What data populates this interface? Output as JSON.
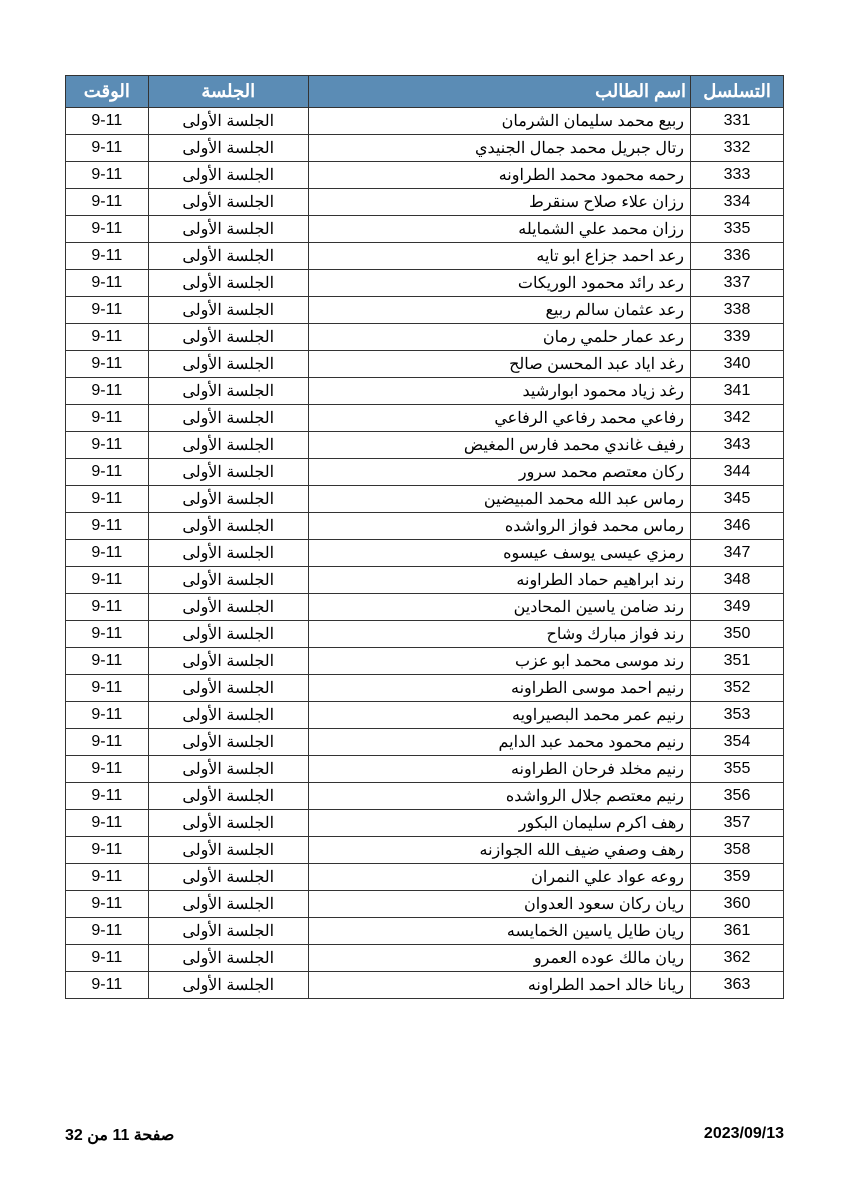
{
  "table": {
    "headers": {
      "seq": "التسلسل",
      "name": "اسم الطالب",
      "session": "الجلسة",
      "time": "الوقت"
    },
    "header_bg": "#5b8cb5",
    "header_fg": "#ffffff",
    "border_color": "#333333",
    "rows": [
      {
        "seq": "331",
        "name": "ربيع محمد سليمان الشرمان",
        "session": "الجلسة الأولى",
        "time": "9-11"
      },
      {
        "seq": "332",
        "name": "رتال جبريل محمد جمال الجنيدي",
        "session": "الجلسة الأولى",
        "time": "9-11"
      },
      {
        "seq": "333",
        "name": "رحمه محمود محمد الطراونه",
        "session": "الجلسة الأولى",
        "time": "9-11"
      },
      {
        "seq": "334",
        "name": "رزان علاء صلاح سنقرط",
        "session": "الجلسة الأولى",
        "time": "9-11"
      },
      {
        "seq": "335",
        "name": "رزان محمد علي الشمايله",
        "session": "الجلسة الأولى",
        "time": "9-11"
      },
      {
        "seq": "336",
        "name": "رعد احمد جزاع ابو تايه",
        "session": "الجلسة الأولى",
        "time": "9-11"
      },
      {
        "seq": "337",
        "name": "رعد رائد محمود الوريكات",
        "session": "الجلسة الأولى",
        "time": "9-11"
      },
      {
        "seq": "338",
        "name": "رعد عثمان سالم ربيع",
        "session": "الجلسة الأولى",
        "time": "9-11"
      },
      {
        "seq": "339",
        "name": "رعد عمار حلمي رمان",
        "session": "الجلسة الأولى",
        "time": "9-11"
      },
      {
        "seq": "340",
        "name": "رغد اياد عبد المحسن صالح",
        "session": "الجلسة الأولى",
        "time": "9-11"
      },
      {
        "seq": "341",
        "name": "رغد زياد محمود ابوارشيد",
        "session": "الجلسة الأولى",
        "time": "9-11"
      },
      {
        "seq": "342",
        "name": "رفاعي محمد رفاعي الرفاعي",
        "session": "الجلسة الأولى",
        "time": "9-11"
      },
      {
        "seq": "343",
        "name": "رفيف غاندي محمد فارس المغيض",
        "session": "الجلسة الأولى",
        "time": "9-11"
      },
      {
        "seq": "344",
        "name": "ركان معتصم محمد سرور",
        "session": "الجلسة الأولى",
        "time": "9-11"
      },
      {
        "seq": "345",
        "name": "رماس عبد الله محمد المبيضين",
        "session": "الجلسة الأولى",
        "time": "9-11"
      },
      {
        "seq": "346",
        "name": "رماس محمد فواز الرواشده",
        "session": "الجلسة الأولى",
        "time": "9-11"
      },
      {
        "seq": "347",
        "name": "رمزي عيسى يوسف عيسوه",
        "session": "الجلسة الأولى",
        "time": "9-11"
      },
      {
        "seq": "348",
        "name": "رند ابراهيم حماد الطراونه",
        "session": "الجلسة الأولى",
        "time": "9-11"
      },
      {
        "seq": "349",
        "name": "رند ضامن ياسين المحادين",
        "session": "الجلسة الأولى",
        "time": "9-11"
      },
      {
        "seq": "350",
        "name": "رند فواز مبارك وشاح",
        "session": "الجلسة الأولى",
        "time": "9-11"
      },
      {
        "seq": "351",
        "name": "رند موسى محمد ابو عزب",
        "session": "الجلسة الأولى",
        "time": "9-11"
      },
      {
        "seq": "352",
        "name": "رنيم احمد موسى الطراونه",
        "session": "الجلسة الأولى",
        "time": "9-11"
      },
      {
        "seq": "353",
        "name": "رنيم عمر محمد البصيراويه",
        "session": "الجلسة الأولى",
        "time": "9-11"
      },
      {
        "seq": "354",
        "name": "رنيم محمود محمد عبد الدايم",
        "session": "الجلسة الأولى",
        "time": "9-11"
      },
      {
        "seq": "355",
        "name": "رنيم مخلد فرحان الطراونه",
        "session": "الجلسة الأولى",
        "time": "9-11"
      },
      {
        "seq": "356",
        "name": "رنيم معتصم جلال الرواشده",
        "session": "الجلسة الأولى",
        "time": "9-11"
      },
      {
        "seq": "357",
        "name": "رهف اكرم سليمان البكور",
        "session": "الجلسة الأولى",
        "time": "9-11"
      },
      {
        "seq": "358",
        "name": "رهف وصفي ضيف  الله الجوازنه",
        "session": "الجلسة الأولى",
        "time": "9-11"
      },
      {
        "seq": "359",
        "name": "روعه عواد علي النمران",
        "session": "الجلسة الأولى",
        "time": "9-11"
      },
      {
        "seq": "360",
        "name": "ريان ركان سعود العدوان",
        "session": "الجلسة الأولى",
        "time": "9-11"
      },
      {
        "seq": "361",
        "name": "ريان طايل ياسين الخمايسه",
        "session": "الجلسة الأولى",
        "time": "9-11"
      },
      {
        "seq": "362",
        "name": "ريان مالك عوده العمرو",
        "session": "الجلسة الأولى",
        "time": "9-11"
      },
      {
        "seq": "363",
        "name": "ريانا خالد احمد الطراونه",
        "session": "الجلسة الأولى",
        "time": "9-11"
      }
    ]
  },
  "footer": {
    "date": "2023/09/13",
    "page": "صفحة 11 من 32"
  }
}
